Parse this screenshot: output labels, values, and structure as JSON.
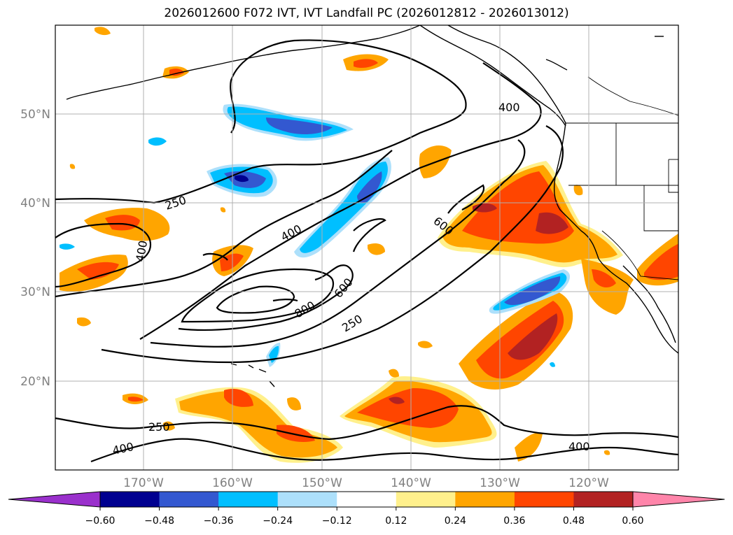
{
  "title": "2026012600 F072 IVT, IVT Landfall PC (2026012812 - 2026013012)",
  "lat_labels": [
    "50°N",
    "40°N",
    "30°N",
    "20°N"
  ],
  "lon_labels": [
    "170°W",
    "160°W",
    "150°W",
    "140°W",
    "130°W",
    "120°W"
  ],
  "contour_labels": [
    "400",
    "250",
    "400",
    "400",
    "600",
    "600",
    "800",
    "250",
    "250",
    "400"
  ],
  "colorbar": {
    "ticks": [
      "−0.60",
      "−0.48",
      "−0.36",
      "−0.24",
      "−0.12",
      "0.12",
      "0.24",
      "0.36",
      "0.48",
      "0.60"
    ],
    "colors": [
      "#9a30cc",
      "#000090",
      "#3358d0",
      "#00bfff",
      "#ade0fb",
      "#ffffff",
      "#fff08c",
      "#ffa500",
      "#ff4500",
      "#b22222",
      "#ff85aa"
    ]
  }
}
